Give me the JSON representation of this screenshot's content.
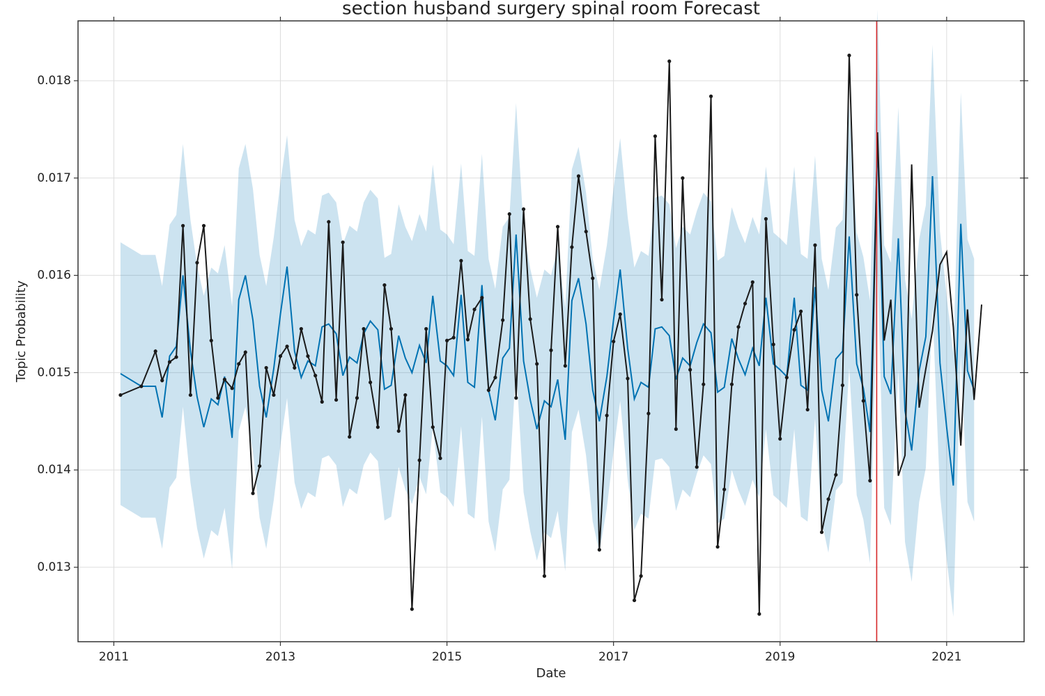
{
  "chart_data": {
    "type": "line",
    "title": "section husband surgery spinal room Forecast",
    "xlabel": "Date",
    "ylabel": "Topic Probability",
    "xlim": [
      2010.57,
      2021.93
    ],
    "ylim": [
      0.012235,
      0.018615
    ],
    "xticks": [
      2011,
      2013,
      2015,
      2017,
      2019,
      2021
    ],
    "yticks": [
      0.013,
      0.014,
      0.015,
      0.016,
      0.017,
      0.018
    ],
    "grid": true,
    "x": [
      2011.08,
      2011.33,
      2011.5,
      2011.58,
      2011.67,
      2011.75,
      2011.83,
      2011.92,
      2012,
      2012.08,
      2012.17,
      2012.25,
      2012.33,
      2012.42,
      2012.5,
      2012.58,
      2012.67,
      2012.75,
      2012.83,
      2012.92,
      2013,
      2013.08,
      2013.17,
      2013.25,
      2013.33,
      2013.42,
      2013.5,
      2013.58,
      2013.67,
      2013.75,
      2013.83,
      2013.92,
      2014,
      2014.08,
      2014.17,
      2014.25,
      2014.33,
      2014.42,
      2014.5,
      2014.58,
      2014.67,
      2014.75,
      2014.83,
      2014.92,
      2015,
      2015.08,
      2015.17,
      2015.25,
      2015.33,
      2015.42,
      2015.5,
      2015.58,
      2015.67,
      2015.75,
      2015.83,
      2015.92,
      2016,
      2016.08,
      2016.17,
      2016.25,
      2016.33,
      2016.42,
      2016.5,
      2016.58,
      2016.67,
      2016.75,
      2016.83,
      2016.92,
      2017,
      2017.08,
      2017.17,
      2017.25,
      2017.33,
      2017.42,
      2017.5,
      2017.58,
      2017.67,
      2017.75,
      2017.83,
      2017.92,
      2018,
      2018.08,
      2018.17,
      2018.25,
      2018.33,
      2018.42,
      2018.5,
      2018.58,
      2018.67,
      2018.75,
      2018.83,
      2018.92,
      2019,
      2019.08,
      2019.17,
      2019.25,
      2019.33,
      2019.42,
      2019.5,
      2019.58,
      2019.67,
      2019.75,
      2019.83,
      2019.92,
      2020,
      2020.08,
      2020.17,
      2020.25,
      2020.33,
      2020.42,
      2020.5,
      2020.58,
      2020.67,
      2020.75,
      2020.83,
      2020.92,
      2021,
      2021.08,
      2021.17,
      2021.25,
      2021.33,
      2021.42
    ],
    "band": {
      "color": "#0072b2",
      "opacity": 0.2,
      "upper": [
        0.01634,
        0.01621,
        0.01621,
        0.01589,
        0.01652,
        0.01662,
        0.01735,
        0.01657,
        0.0161,
        0.01579,
        0.01608,
        0.01602,
        0.01631,
        0.01568,
        0.0171,
        0.01735,
        0.01689,
        0.01621,
        0.01589,
        0.01639,
        0.01695,
        0.01744,
        0.01657,
        0.0163,
        0.01647,
        0.01642,
        0.01682,
        0.01685,
        0.01675,
        0.01632,
        0.01651,
        0.01645,
        0.01675,
        0.01688,
        0.01679,
        0.01618,
        0.01622,
        0.01673,
        0.0165,
        0.01635,
        0.01663,
        0.01645,
        0.01714,
        0.01647,
        0.01642,
        0.01632,
        0.01715,
        0.01625,
        0.0162,
        0.01725,
        0.01617,
        0.01586,
        0.0165,
        0.0166,
        0.01777,
        0.01647,
        0.01607,
        0.01577,
        0.01606,
        0.016,
        0.01628,
        0.01566,
        0.01709,
        0.01732,
        0.01685,
        0.01617,
        0.01585,
        0.01631,
        0.01689,
        0.01741,
        0.0166,
        0.01608,
        0.01625,
        0.0162,
        0.0168,
        0.01682,
        0.01673,
        0.01628,
        0.0165,
        0.01642,
        0.01666,
        0.01685,
        0.01676,
        0.01615,
        0.0162,
        0.0167,
        0.01649,
        0.01633,
        0.0166,
        0.01642,
        0.01712,
        0.01644,
        0.01638,
        0.01631,
        0.01712,
        0.01622,
        0.01617,
        0.01723,
        0.01617,
        0.01585,
        0.01649,
        0.01657,
        0.01775,
        0.01644,
        0.01619,
        0.01574,
        0.01873,
        0.01631,
        0.01613,
        0.01773,
        0.01596,
        0.01555,
        0.01637,
        0.01672,
        0.01837,
        0.01645,
        0.01579,
        0.01519,
        0.01788,
        0.01637,
        0.01617,
        null
      ],
      "lower": [
        0.01364,
        0.01351,
        0.01351,
        0.01319,
        0.01382,
        0.01392,
        0.01465,
        0.01387,
        0.0134,
        0.01309,
        0.01338,
        0.01332,
        0.01361,
        0.01298,
        0.0144,
        0.01465,
        0.01419,
        0.01351,
        0.01319,
        0.01369,
        0.01425,
        0.01474,
        0.01387,
        0.0136,
        0.01377,
        0.01372,
        0.01412,
        0.01415,
        0.01405,
        0.01362,
        0.01381,
        0.01375,
        0.01405,
        0.01418,
        0.01409,
        0.01348,
        0.01352,
        0.01403,
        0.0138,
        0.01365,
        0.01393,
        0.01375,
        0.01444,
        0.01377,
        0.01372,
        0.01362,
        0.01445,
        0.01355,
        0.0135,
        0.01455,
        0.01347,
        0.01316,
        0.0138,
        0.0139,
        0.01507,
        0.01377,
        0.01337,
        0.01307,
        0.01336,
        0.0133,
        0.01358,
        0.01296,
        0.01439,
        0.01462,
        0.01415,
        0.01347,
        0.01315,
        0.01361,
        0.01419,
        0.01471,
        0.0139,
        0.01338,
        0.01355,
        0.0135,
        0.0141,
        0.01412,
        0.01403,
        0.01358,
        0.0138,
        0.01372,
        0.01396,
        0.01415,
        0.01406,
        0.01345,
        0.0135,
        0.014,
        0.01379,
        0.01363,
        0.0139,
        0.01372,
        0.01442,
        0.01374,
        0.01368,
        0.01361,
        0.01442,
        0.01352,
        0.01347,
        0.01453,
        0.01347,
        0.01315,
        0.01379,
        0.01387,
        0.01505,
        0.01374,
        0.01349,
        0.01304,
        0.01603,
        0.01361,
        0.01343,
        0.01503,
        0.01326,
        0.01285,
        0.01367,
        0.01402,
        0.01567,
        0.01375,
        0.01309,
        0.01249,
        0.01518,
        0.01367,
        0.01347,
        null
      ]
    },
    "series": [
      {
        "color": "#0072b2",
        "markers": false,
        "values": [
          0.01499,
          0.01486,
          0.01486,
          0.01454,
          0.01517,
          0.01527,
          0.016,
          0.01522,
          0.01475,
          0.01444,
          0.01473,
          0.01467,
          0.01496,
          0.01433,
          0.01575,
          0.016,
          0.01554,
          0.01486,
          0.01454,
          0.01504,
          0.0156,
          0.01609,
          0.01522,
          0.01495,
          0.01512,
          0.01507,
          0.01547,
          0.0155,
          0.0154,
          0.01497,
          0.01516,
          0.0151,
          0.0154,
          0.01553,
          0.01544,
          0.01483,
          0.01487,
          0.01538,
          0.01515,
          0.015,
          0.01528,
          0.0151,
          0.01579,
          0.01512,
          0.01507,
          0.01497,
          0.0158,
          0.0149,
          0.01485,
          0.0159,
          0.01482,
          0.01451,
          0.01515,
          0.01525,
          0.01642,
          0.01512,
          0.01472,
          0.01442,
          0.01471,
          0.01465,
          0.01493,
          0.01431,
          0.01574,
          0.01597,
          0.0155,
          0.01482,
          0.0145,
          0.01496,
          0.01554,
          0.01606,
          0.01525,
          0.01473,
          0.0149,
          0.01485,
          0.01545,
          0.01547,
          0.01538,
          0.01493,
          0.01515,
          0.01507,
          0.01531,
          0.0155,
          0.01541,
          0.0148,
          0.01485,
          0.01535,
          0.01514,
          0.01498,
          0.01525,
          0.01507,
          0.01577,
          0.01509,
          0.01503,
          0.01496,
          0.01577,
          0.01487,
          0.01482,
          0.01588,
          0.01482,
          0.0145,
          0.01514,
          0.01522,
          0.0164,
          0.01509,
          0.01484,
          0.01439,
          0.01738,
          0.01496,
          0.01478,
          0.01638,
          0.01461,
          0.0142,
          0.01502,
          0.01537,
          0.01702,
          0.0151,
          0.01444,
          0.01384,
          0.01653,
          0.01502,
          0.01482,
          null
        ]
      },
      {
        "color": "#1a1a1a",
        "markers": true,
        "values": [
          0.01477,
          0.01486,
          0.01522,
          0.01492,
          0.01511,
          0.01516,
          0.01651,
          0.01477,
          0.01613,
          0.01651,
          0.01533,
          0.01474,
          0.01493,
          0.01484,
          0.01509,
          0.01521,
          0.01376,
          0.01404,
          0.01505,
          0.01477,
          0.01517,
          0.01527,
          0.01505,
          0.01545,
          0.01517,
          0.01497,
          0.0147,
          0.01655,
          0.01472,
          0.01634,
          0.01434,
          0.01474,
          0.01545,
          0.0149,
          0.01444,
          0.0159,
          0.01545,
          0.0144,
          0.01477,
          0.01257,
          0.0141,
          0.01545,
          0.01444,
          0.01412,
          0.01533,
          0.01536,
          0.01615,
          0.01534,
          0.01565,
          0.01577,
          0.01482,
          0.01495,
          0.01554,
          0.01663,
          0.01474,
          0.01668,
          0.01555,
          0.01509,
          0.01291,
          0.01523,
          0.0165,
          0.01507,
          0.01629,
          0.01702,
          0.01645,
          0.01597,
          0.01318,
          0.01456,
          0.01532,
          0.0156,
          0.01494,
          0.01266,
          0.01291,
          0.01458,
          0.01743,
          0.01575,
          0.0182,
          0.01442,
          0.017,
          0.01503,
          0.01403,
          0.01488,
          0.01784,
          0.01321,
          0.0138,
          0.01488,
          0.01547,
          0.01571,
          0.01593,
          0.01252,
          0.01658,
          0.01529,
          0.01432,
          0.01495,
          0.01544,
          0.01563,
          0.01462,
          0.01631,
          0.01336,
          0.0137,
          0.01395,
          0.01487,
          0.01826,
          0.0158,
          0.01471,
          0.01389,
          0.01747,
          0.01533,
          0.01575,
          0.01394,
          0.01415,
          0.01714,
          0.01464,
          0.01504,
          0.01543,
          0.01611,
          0.01624,
          0.01547,
          0.01425,
          0.01565,
          0.01472,
          0.0157
        ]
      }
    ],
    "vline": {
      "value": 2020.16,
      "color": "#d62728"
    }
  }
}
